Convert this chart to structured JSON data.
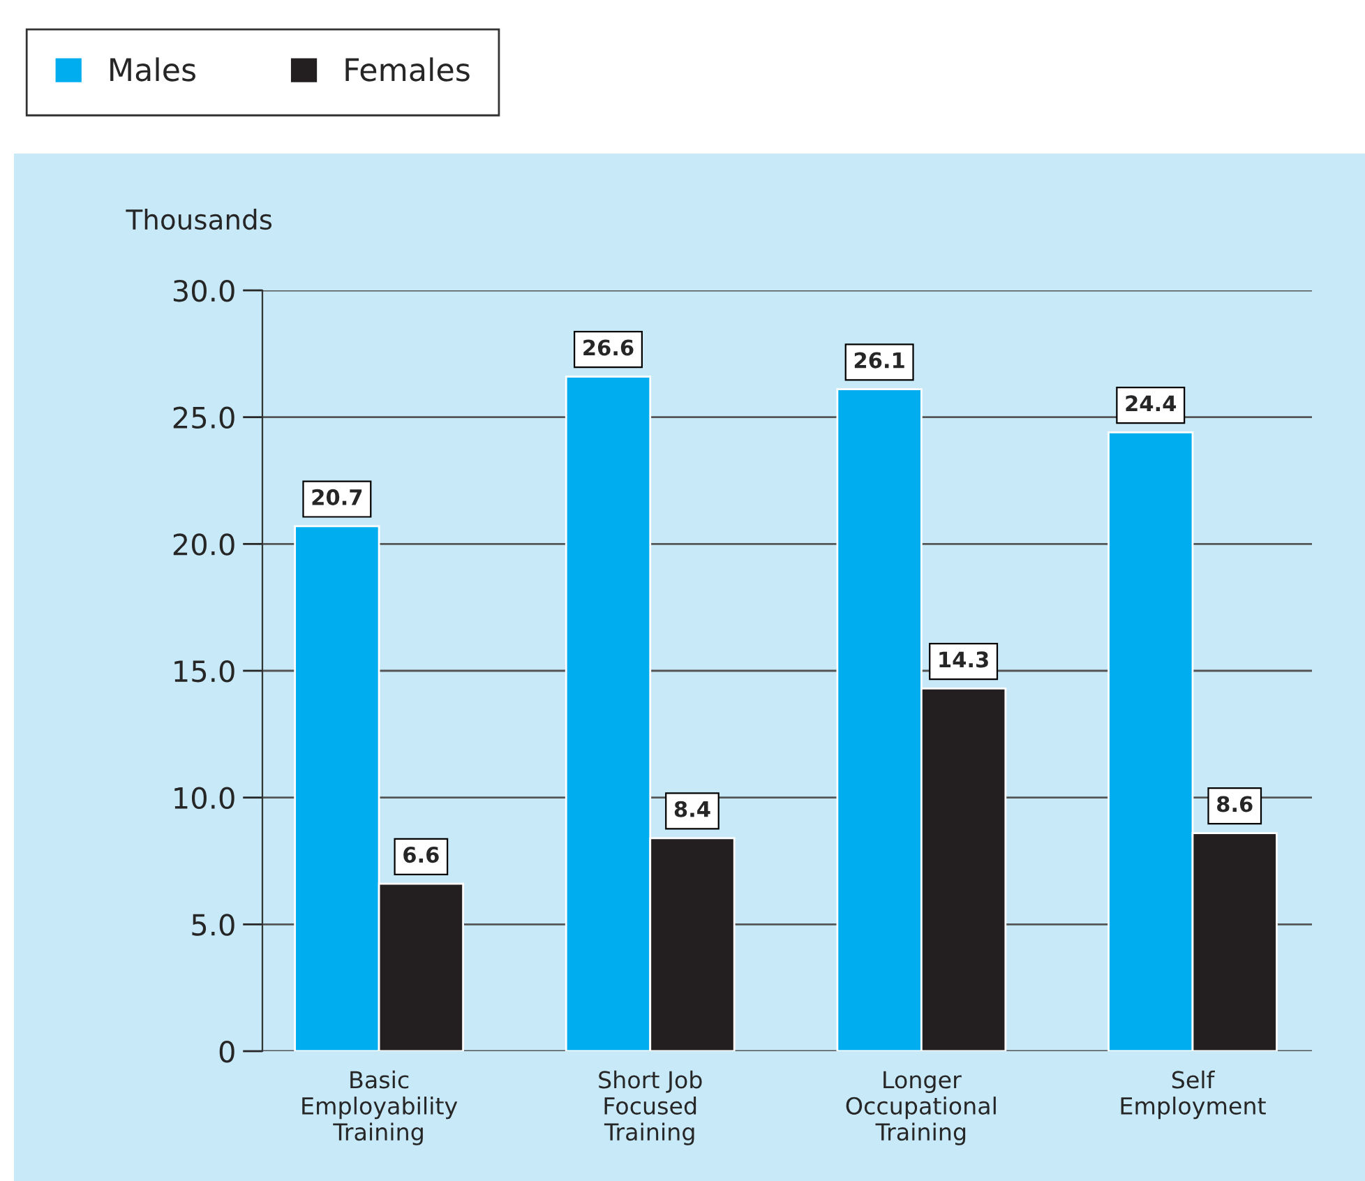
{
  "chart_data": {
    "type": "bar",
    "ylabel": "Thousands",
    "categories": [
      "Basic\nEmployability\nTraining",
      "Short Job\nFocused\nTraining",
      "Longer\nOccupational\nTraining",
      "Self\nEmployment"
    ],
    "series": [
      {
        "name": "Males",
        "color": "#00aeef",
        "values": [
          20.7,
          26.6,
          26.1,
          24.4
        ]
      },
      {
        "name": "Females",
        "color": "#231f20",
        "values": [
          6.6,
          8.4,
          14.3,
          8.6
        ]
      }
    ],
    "ylim": [
      0,
      30
    ],
    "yticks": [
      0,
      {
        "value": 5,
        "label": "5.0"
      },
      {
        "value": 10,
        "label": "10.0"
      },
      {
        "value": 15,
        "label": "15.0"
      },
      {
        "value": 20,
        "label": "20.0"
      },
      {
        "value": 25,
        "label": "25.0"
      },
      {
        "value": 30,
        "label": "30.0"
      }
    ],
    "grid": "y",
    "legend": "top left",
    "data_labels": true
  }
}
